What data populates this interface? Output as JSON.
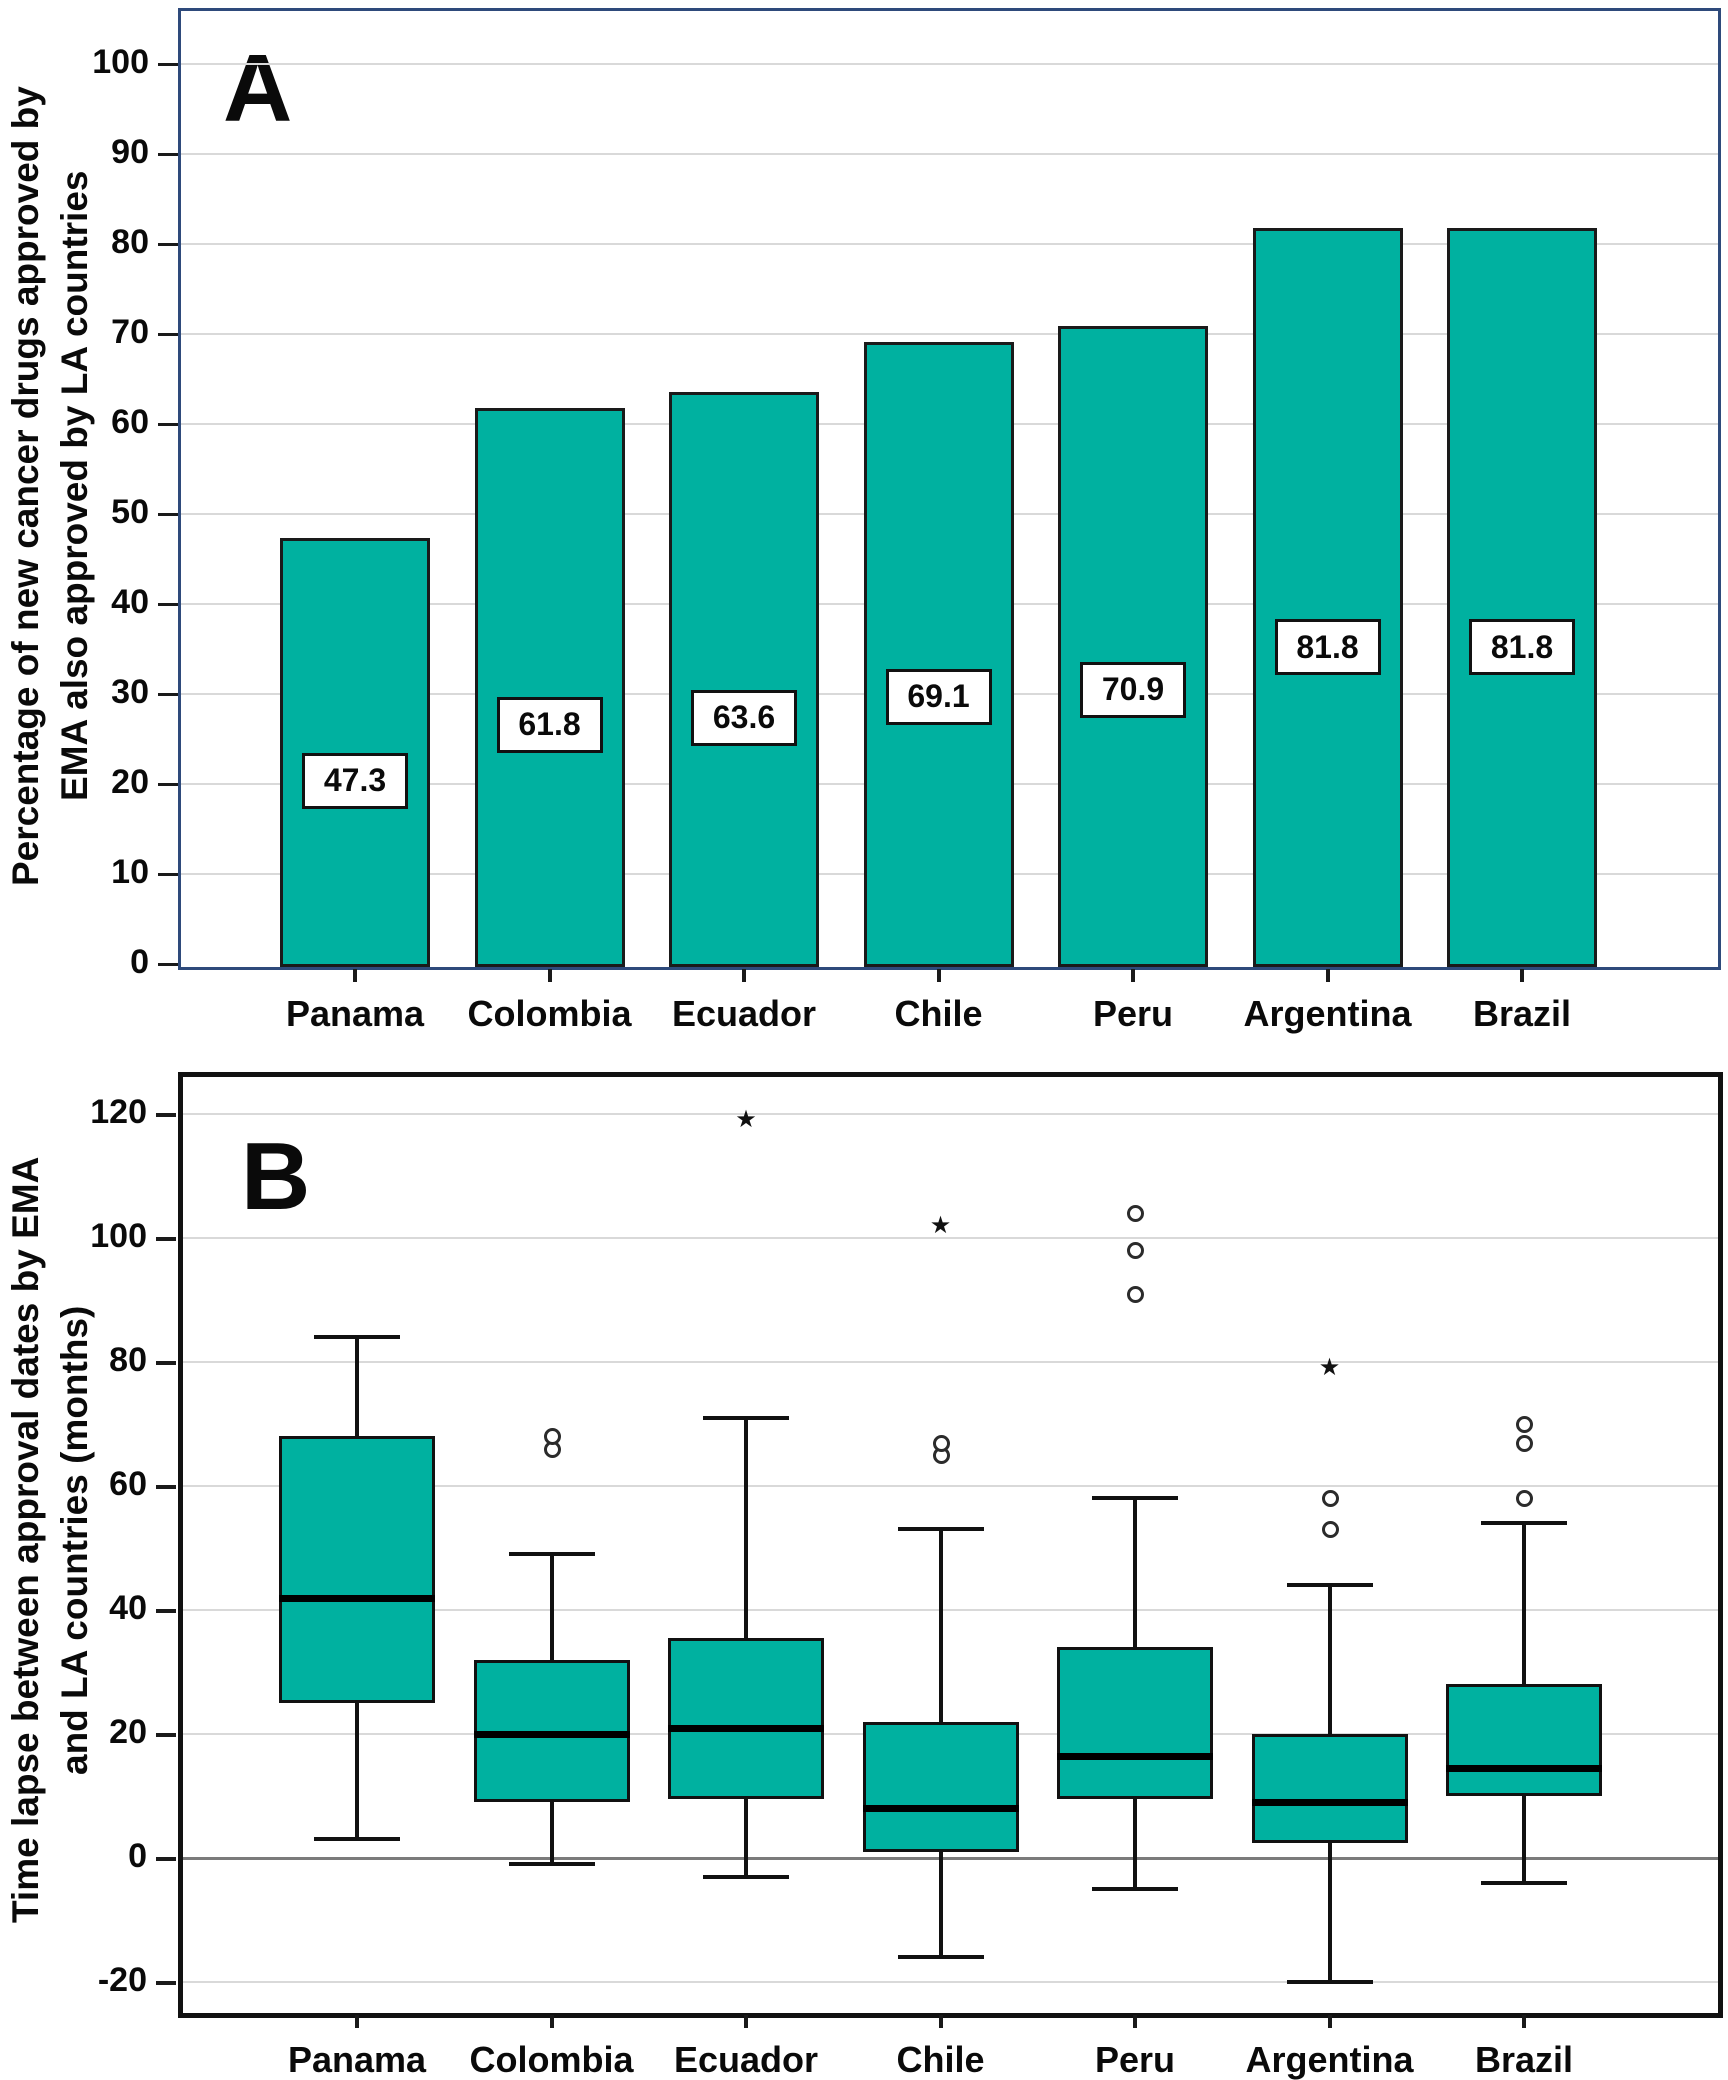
{
  "panel_a": {
    "label": "A",
    "ylabel_line1": "Percentage of new cancer drugs approved by",
    "ylabel_line2": "EMA also approved by LA countries"
  },
  "panel_b": {
    "label": "B",
    "ylabel_line1": "Time lapse between approval dates by EMA",
    "ylabel_line2": "and LA countries (months)"
  },
  "chart_data": [
    {
      "type": "bar",
      "panel": "A",
      "title": "",
      "categories": [
        "Panama",
        "Colombia",
        "Ecuador",
        "Chile",
        "Peru",
        "Argentina",
        "Brazil"
      ],
      "values": [
        47.3,
        61.8,
        63.6,
        69.1,
        70.9,
        81.8,
        81.8
      ],
      "data_labels": [
        "47.3",
        "61.8",
        "63.6",
        "69.1",
        "70.9",
        "81.8",
        "81.8"
      ],
      "xlabel": "",
      "ylabel": "Percentage of new cancer drugs approved by EMA also approved by LA countries",
      "ylim": [
        0,
        100
      ],
      "yticks": [
        0,
        10,
        20,
        30,
        40,
        50,
        60,
        70,
        80,
        90,
        100
      ],
      "grid": true,
      "legend_position": "none",
      "bar_color": "#00B1A0",
      "bar_border_color": "#1a1a1a",
      "frame_color": "#2E4A7B"
    },
    {
      "type": "boxplot",
      "panel": "B",
      "title": "",
      "categories": [
        "Panama",
        "Colombia",
        "Ecuador",
        "Chile",
        "Peru",
        "Argentina",
        "Brazil"
      ],
      "series": [
        {
          "country": "Panama",
          "whisker_low": 3,
          "q1": 25,
          "median": 42,
          "q3": 68,
          "whisker_high": 84,
          "outliers": [],
          "extremes": []
        },
        {
          "country": "Colombia",
          "whisker_low": -1,
          "q1": 9,
          "median": 20,
          "q3": 32,
          "whisker_high": 49,
          "outliers": [
            66,
            68
          ],
          "extremes": []
        },
        {
          "country": "Ecuador",
          "whisker_low": -3,
          "q1": 9.5,
          "median": 21,
          "q3": 35.5,
          "whisker_high": 71,
          "outliers": [],
          "extremes": [
            119
          ]
        },
        {
          "country": "Chile",
          "whisker_low": -16,
          "q1": 1,
          "median": 8,
          "q3": 22,
          "whisker_high": 53,
          "outliers": [
            65,
            67
          ],
          "extremes": [
            102
          ]
        },
        {
          "country": "Peru",
          "whisker_low": -5,
          "q1": 9.5,
          "median": 16.5,
          "q3": 34,
          "whisker_high": 58,
          "outliers": [
            91,
            98,
            104
          ],
          "extremes": []
        },
        {
          "country": "Argentina",
          "whisker_low": -20,
          "q1": 2.5,
          "median": 9,
          "q3": 20,
          "whisker_high": 44,
          "outliers": [
            53,
            58
          ],
          "extremes": [
            79
          ]
        },
        {
          "country": "Brazil",
          "whisker_low": -4,
          "q1": 10,
          "median": 14.5,
          "q3": 28,
          "whisker_high": 54,
          "outliers": [
            58,
            67,
            70
          ],
          "extremes": []
        }
      ],
      "xlabel": "",
      "ylabel": "Time lapse between approval dates by EMA and LA countries (months)",
      "ylim": [
        -20,
        120
      ],
      "yticks": [
        -20,
        0,
        20,
        40,
        60,
        80,
        100,
        120
      ],
      "grid": true,
      "zero_line": true,
      "legend_position": "none",
      "box_color": "#00B1A0",
      "frame_color": "#111111"
    }
  ]
}
